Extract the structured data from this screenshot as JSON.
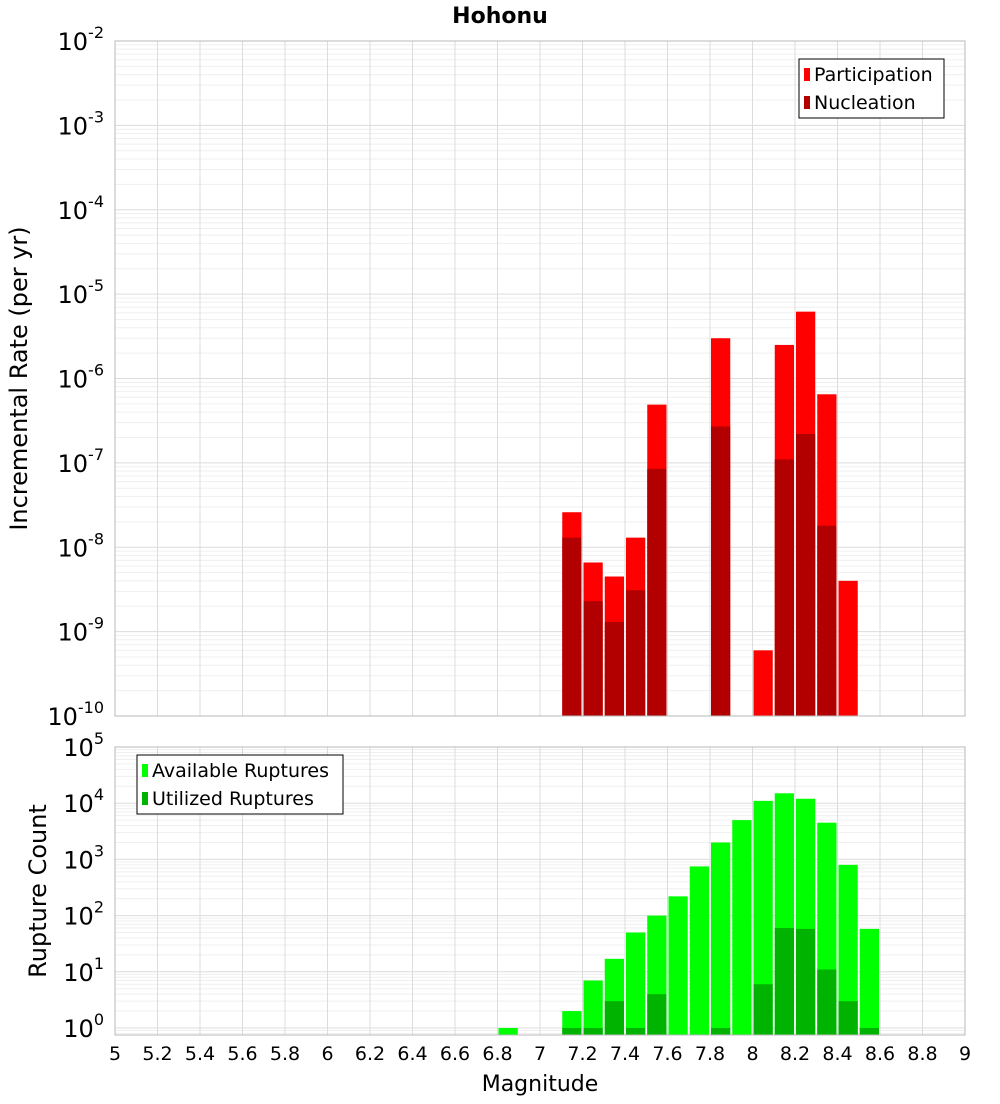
{
  "title": "Hohonu",
  "xlabel": "Magnitude",
  "colors": {
    "participation": "#ff0000",
    "nucleation": "#b20000",
    "available": "#00ff00",
    "utilized": "#00b300",
    "grid_major": "#dcdcdc",
    "grid_minor": "#efefef",
    "frame": "#b8b8b8"
  },
  "chart_data": [
    {
      "type": "bar",
      "panel": "top",
      "ylabel": "Incremental Rate (per yr)",
      "yscale": "log",
      "ylim": [
        1e-10,
        0.01
      ],
      "xlim": [
        5,
        9
      ],
      "x_ticks": [
        "5",
        "5.2",
        "5.4",
        "5.6",
        "5.8",
        "6",
        "6.2",
        "6.4",
        "6.6",
        "6.8",
        "7",
        "7.2",
        "7.4",
        "7.6",
        "7.8",
        "8",
        "8.2",
        "8.4",
        "8.6",
        "8.8",
        "9"
      ],
      "y_ticks": [
        {
          "base": "10",
          "exp": "-10"
        },
        {
          "base": "10",
          "exp": "-9"
        },
        {
          "base": "10",
          "exp": "-8"
        },
        {
          "base": "10",
          "exp": "-7"
        },
        {
          "base": "10",
          "exp": "-6"
        },
        {
          "base": "10",
          "exp": "-5"
        },
        {
          "base": "10",
          "exp": "-4"
        },
        {
          "base": "10",
          "exp": "-3"
        },
        {
          "base": "10",
          "exp": "-2"
        }
      ],
      "legend_position": "top-right",
      "series": [
        {
          "name": "Participation",
          "x": [
            7.15,
            7.25,
            7.35,
            7.45,
            7.55,
            7.85,
            8.05,
            8.15,
            8.25,
            8.35,
            8.45
          ],
          "values": [
            2.6e-08,
            6.6e-09,
            4.5e-09,
            1.3e-08,
            4.9e-07,
            3e-06,
            6e-10,
            2.5e-06,
            6.2e-06,
            6.5e-07,
            4e-09
          ]
        },
        {
          "name": "Nucleation",
          "x": [
            7.15,
            7.25,
            7.35,
            7.45,
            7.55,
            7.85,
            8.15,
            8.25,
            8.35
          ],
          "values": [
            1.3e-08,
            2.3e-09,
            1.3e-09,
            3.1e-09,
            8.5e-08,
            2.7e-07,
            1.1e-07,
            2.2e-07,
            1.8e-08
          ]
        }
      ]
    },
    {
      "type": "bar",
      "panel": "bottom",
      "ylabel": "Rupture Count",
      "yscale": "log",
      "ylim": [
        0.75,
        100000
      ],
      "xlim": [
        5,
        9
      ],
      "y_ticks": [
        {
          "base": "10",
          "exp": "0"
        },
        {
          "base": "10",
          "exp": "1"
        },
        {
          "base": "10",
          "exp": "2"
        },
        {
          "base": "10",
          "exp": "3"
        },
        {
          "base": "10",
          "exp": "4"
        },
        {
          "base": "10",
          "exp": "5"
        }
      ],
      "legend_position": "top-left",
      "series": [
        {
          "name": "Available Ruptures",
          "x": [
            6.85,
            7.15,
            7.25,
            7.35,
            7.45,
            7.55,
            7.65,
            7.75,
            7.85,
            7.95,
            8.05,
            8.15,
            8.25,
            8.35,
            8.45,
            8.55
          ],
          "values": [
            1,
            2,
            7,
            17,
            50,
            100,
            220,
            750,
            2000,
            5000,
            11000,
            15000,
            12000,
            4500,
            800,
            58
          ]
        },
        {
          "name": "Utilized Ruptures",
          "x": [
            7.15,
            7.25,
            7.35,
            7.45,
            7.55,
            7.85,
            8.05,
            8.15,
            8.25,
            8.35,
            8.45,
            8.55
          ],
          "values": [
            1,
            1,
            3,
            1,
            4,
            1,
            6,
            60,
            58,
            11,
            3,
            1
          ]
        }
      ]
    }
  ]
}
